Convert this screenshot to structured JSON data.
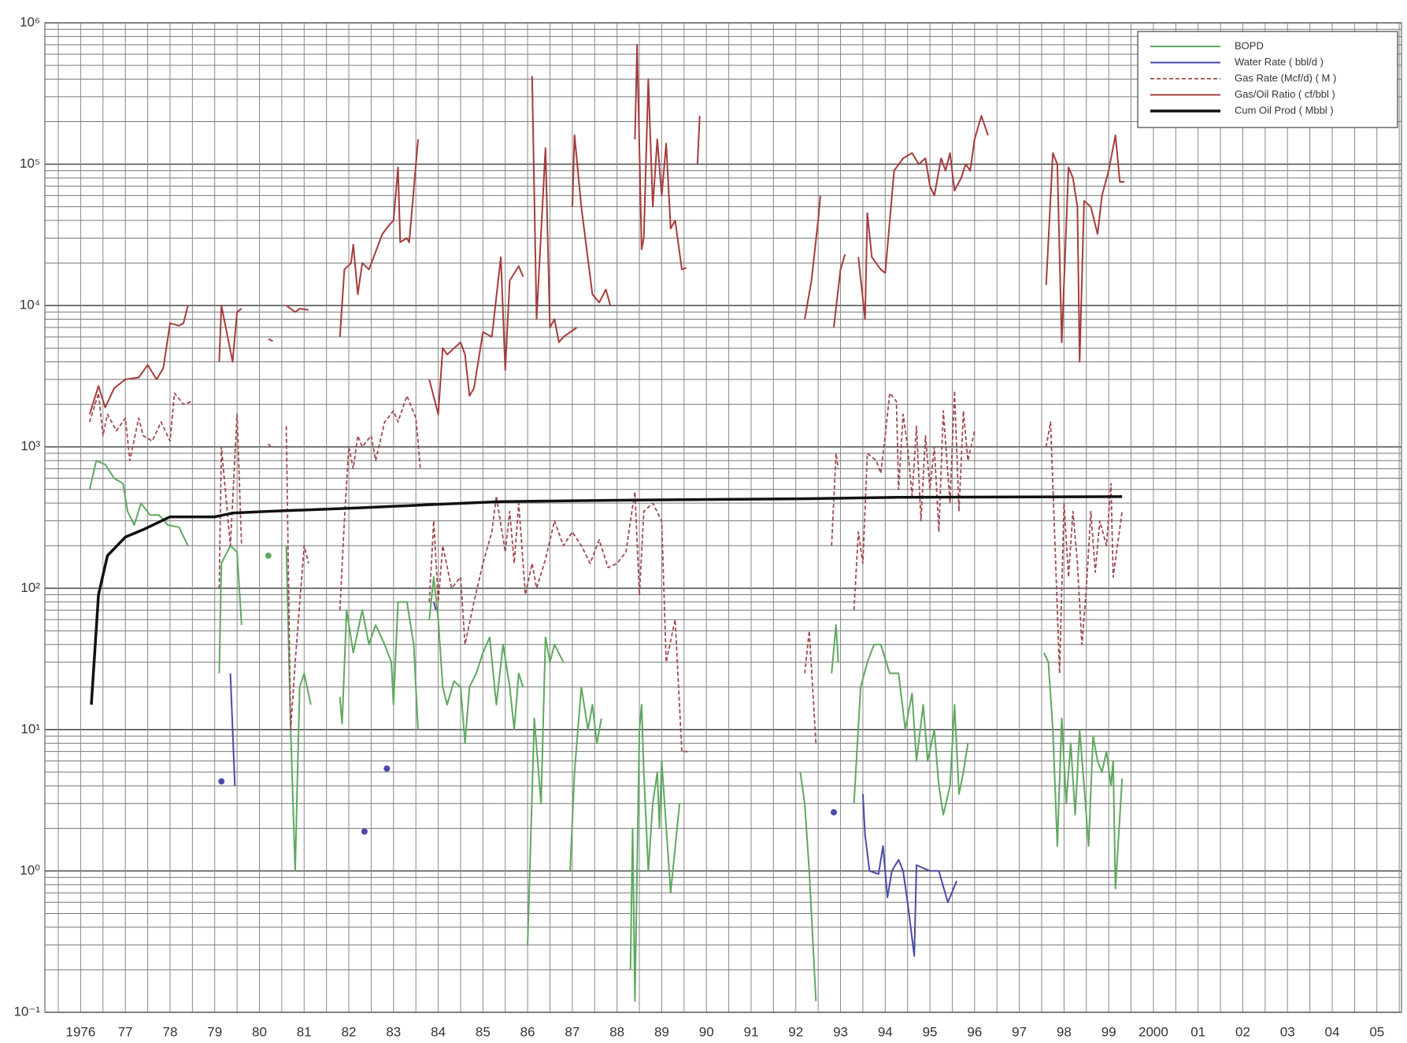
{
  "chart_data": {
    "type": "line",
    "log_y": true,
    "grid": true,
    "legend": "upper right",
    "xlim": [
      1975.2,
      2005.55
    ],
    "xticks": [
      {
        "value": 1976,
        "label": "1976"
      },
      {
        "value": 1977,
        "label": "77"
      },
      {
        "value": 1978,
        "label": "78"
      },
      {
        "value": 1979,
        "label": "79"
      },
      {
        "value": 1980,
        "label": "80"
      },
      {
        "value": 1981,
        "label": "81"
      },
      {
        "value": 1982,
        "label": "82"
      },
      {
        "value": 1983,
        "label": "83"
      },
      {
        "value": 1984,
        "label": "84"
      },
      {
        "value": 1985,
        "label": "85"
      },
      {
        "value": 1986,
        "label": "86"
      },
      {
        "value": 1987,
        "label": "87"
      },
      {
        "value": 1988,
        "label": "88"
      },
      {
        "value": 1989,
        "label": "89"
      },
      {
        "value": 1990,
        "label": "90"
      },
      {
        "value": 1991,
        "label": "91"
      },
      {
        "value": 1992,
        "label": "92"
      },
      {
        "value": 1993,
        "label": "93"
      },
      {
        "value": 1994,
        "label": "94"
      },
      {
        "value": 1995,
        "label": "95"
      },
      {
        "value": 1996,
        "label": "96"
      },
      {
        "value": 1997,
        "label": "97"
      },
      {
        "value": 1998,
        "label": "98"
      },
      {
        "value": 1999,
        "label": "99"
      },
      2000,
      {
        "value": 2001,
        "label": "01"
      },
      {
        "value": 2002,
        "label": "02"
      },
      {
        "value": 2003,
        "label": "03"
      },
      {
        "value": 2004,
        "label": "04"
      },
      {
        "value": 2005,
        "label": "05"
      }
    ],
    "ylim": [
      0.1,
      1000000
    ],
    "yticks": [
      {
        "value": 0.1,
        "label": "10⁻¹"
      },
      {
        "value": 1,
        "label": "10⁰"
      },
      {
        "value": 10,
        "label": "10¹"
      },
      {
        "value": 100,
        "label": "10²"
      },
      {
        "value": 1000,
        "label": "10³"
      },
      {
        "value": 10000,
        "label": "10⁴"
      },
      {
        "value": 100000,
        "label": "10⁵"
      },
      {
        "value": 1000000,
        "label": "10⁶"
      }
    ],
    "series": [
      {
        "name": "BOPD",
        "color": "#5fa85f",
        "style": "solid",
        "x": [
          1976.2,
          1976.35,
          1976.55,
          1976.75,
          1976.95,
          1977.05,
          1977.2,
          1977.35,
          1977.55,
          1977.75,
          1977.95,
          1978.2,
          1978.4,
          null,
          1979.1,
          1979.15,
          1979.35,
          1979.5,
          1979.6,
          null,
          1980.2,
          null,
          1980.6,
          1980.7,
          1980.8,
          1980.9,
          1981.0,
          1981.15,
          null,
          1981.8,
          1981.85,
          1981.95,
          1982.1,
          1982.3,
          1982.45,
          1982.6,
          1982.8,
          1982.95,
          1983.0,
          1983.1,
          1983.3,
          1983.45,
          1983.55,
          null,
          1983.8,
          1983.9,
          1984.0,
          1984.1,
          1984.2,
          1984.35,
          1984.5,
          1984.6,
          1984.7,
          1984.85,
          1985.0,
          1985.15,
          1985.3,
          1985.45,
          1985.6,
          1985.7,
          1985.8,
          1985.9,
          null,
          1986.0,
          1986.15,
          1986.3,
          1986.4,
          1986.5,
          1986.6,
          1986.8,
          null,
          1986.95,
          1987.05,
          1987.2,
          1987.35,
          1987.45,
          1987.55,
          1987.65,
          null,
          1988.3,
          1988.35,
          1988.4,
          1988.5,
          1988.55,
          1988.6,
          1988.7,
          1988.8,
          1988.9,
          1988.95,
          1989.0,
          1989.2,
          1989.4,
          null,
          1992.1,
          1992.2,
          1992.3,
          1992.45,
          null,
          1992.8,
          1992.9,
          1992.95,
          null,
          1993.3,
          1993.45,
          1993.6,
          1993.75,
          1993.9,
          1994.1,
          1994.3,
          1994.45,
          1994.6,
          1994.7,
          1994.85,
          1994.95,
          1995.1,
          1995.2,
          1995.3,
          1995.45,
          1995.55,
          1995.65,
          1995.75,
          1995.85,
          null,
          1997.55,
          1997.65,
          1997.75,
          1997.85,
          1997.95,
          1998.05,
          1998.15,
          1998.25,
          1998.35,
          1998.45,
          1998.55,
          1998.65,
          1998.75,
          1998.85,
          1998.95,
          1999.05,
          1999.1,
          1999.15,
          1999.3
        ],
        "values": [
          500,
          800,
          750,
          600,
          550,
          350,
          280,
          400,
          330,
          330,
          280,
          270,
          200,
          null,
          25,
          150,
          200,
          180,
          55,
          null,
          170,
          null,
          200,
          10,
          1,
          20,
          25,
          15,
          null,
          17,
          11,
          70,
          35,
          70,
          40,
          55,
          40,
          30,
          15,
          80,
          80,
          40,
          10,
          null,
          60,
          120,
          60,
          20,
          15,
          22,
          20,
          8,
          20,
          25,
          35,
          45,
          15,
          40,
          20,
          10,
          25,
          20,
          null,
          0.3,
          12,
          3,
          45,
          30,
          40,
          30,
          null,
          1,
          5,
          20,
          10,
          15,
          8,
          12,
          null,
          0.2,
          2,
          0.12,
          10,
          15,
          5,
          1,
          3,
          5,
          2,
          6,
          0.7,
          3,
          null,
          5,
          3,
          1,
          0.12,
          null,
          25,
          55,
          30,
          null,
          3,
          20,
          30,
          40,
          40,
          25,
          25,
          10,
          18,
          6,
          15,
          6,
          10,
          4,
          2.5,
          4,
          15,
          3.5,
          5,
          8,
          null,
          35,
          30,
          10,
          1.5,
          12,
          3,
          8,
          2.5,
          10,
          4,
          1.5,
          9,
          6,
          5,
          7,
          4,
          6,
          0.75,
          4.5
        ]
      },
      {
        "name": "Water Rate ( bbl/d )",
        "color": "#4a4aa8",
        "style": "solid",
        "x": [
          1979.15,
          null,
          1979.35,
          1979.45,
          null,
          1982.35,
          null,
          1982.85,
          null,
          1983.9,
          1983.95,
          null,
          1992.85,
          null,
          1993.5,
          1993.55,
          1993.65,
          1993.85,
          1993.95,
          1994.05,
          1994.15,
          1994.3,
          1994.4,
          1994.5,
          1994.65,
          1994.7,
          1995.0,
          1995.2,
          1995.4,
          1995.6
        ],
        "values": [
          4.3,
          null,
          25,
          4,
          null,
          1.9,
          null,
          5.3,
          null,
          80,
          70,
          null,
          2.6,
          null,
          3.5,
          1.8,
          1,
          0.95,
          1.5,
          0.65,
          1.0,
          1.2,
          1.0,
          0.6,
          0.25,
          1.1,
          1.0,
          1.0,
          0.6,
          0.85
        ]
      },
      {
        "name": "Gas Rate (Mcf/d) ( M )",
        "color": "#a04a4e",
        "style": "dashed",
        "x": [
          1976.2,
          1976.4,
          1976.5,
          1976.6,
          1976.8,
          1977.0,
          1977.1,
          1977.3,
          1977.4,
          1977.6,
          1977.8,
          1978.0,
          1978.1,
          1978.3,
          1978.5,
          null,
          1979.1,
          1979.15,
          1979.35,
          1979.5,
          1979.6,
          null,
          1980.2,
          1980.25,
          null,
          1980.6,
          1980.7,
          1980.8,
          1981.0,
          1981.1,
          null,
          1981.8,
          1981.9,
          1982.0,
          1982.1,
          1982.2,
          1982.3,
          1982.5,
          1982.6,
          1982.8,
          1983.0,
          1983.1,
          1983.3,
          1983.5,
          1983.6,
          null,
          1983.8,
          1983.9,
          1984.0,
          1984.1,
          1984.3,
          1984.5,
          1984.6,
          1984.8,
          1985.0,
          1985.2,
          1985.3,
          1985.5,
          1985.6,
          1985.7,
          1985.8,
          1985.95,
          1986.1,
          1986.2,
          1986.4,
          1986.6,
          1986.8,
          1987.0,
          1987.2,
          1987.4,
          1987.6,
          1987.8,
          1988.0,
          1988.2,
          1988.3,
          1988.4,
          1988.5,
          1988.6,
          1988.8,
          1989.0,
          1989.1,
          1989.3,
          1989.45,
          1989.6,
          null,
          1992.2,
          1992.3,
          1992.45,
          null,
          1992.8,
          1992.9,
          1992.95,
          null,
          1993.3,
          1993.4,
          1993.5,
          1993.6,
          1993.8,
          1993.9,
          1994.0,
          1994.1,
          1994.25,
          1994.3,
          1994.4,
          1994.5,
          1994.6,
          1994.7,
          1994.8,
          1994.9,
          1995.0,
          1995.1,
          1995.2,
          1995.3,
          1995.45,
          1995.55,
          1995.65,
          1995.75,
          1995.85,
          1996.0,
          null,
          1997.6,
          1997.7,
          1997.8,
          1997.9,
          1998.0,
          1998.1,
          1998.2,
          1998.3,
          1998.4,
          1998.5,
          1998.6,
          1998.7,
          1998.8,
          1998.95,
          1999.05,
          1999.1,
          1999.3
        ],
        "values": [
          1500,
          2400,
          1200,
          1700,
          1300,
          1600,
          800,
          1600,
          1200,
          1100,
          1500,
          1100,
          2400,
          2000,
          2100,
          null,
          100,
          1000,
          200,
          1700,
          200,
          null,
          1050,
          1000,
          null,
          1400,
          10,
          30,
          200,
          150,
          null,
          70,
          300,
          1000,
          700,
          1200,
          1000,
          1200,
          800,
          1500,
          1800,
          1500,
          2300,
          1600,
          700,
          null,
          80,
          300,
          80,
          200,
          100,
          120,
          40,
          80,
          150,
          250,
          450,
          180,
          350,
          150,
          400,
          90,
          150,
          100,
          160,
          300,
          200,
          250,
          200,
          150,
          220,
          140,
          150,
          180,
          300,
          480,
          90,
          350,
          400,
          300,
          30,
          60,
          7,
          7,
          null,
          25,
          50,
          8,
          null,
          200,
          900,
          700,
          null,
          70,
          250,
          150,
          900,
          800,
          650,
          1200,
          2400,
          2100,
          500,
          1700,
          1000,
          450,
          1400,
          300,
          1200,
          500,
          1000,
          250,
          1800,
          400,
          2500,
          350,
          1800,
          800,
          1300,
          null,
          1000,
          1500,
          200,
          25,
          400,
          120,
          350,
          150,
          40,
          100,
          350,
          130,
          300,
          200,
          550,
          120,
          350
        ]
      },
      {
        "name": "Gas/Oil Ratio ( cf/bbl )",
        "color": "#a63c3c",
        "style": "solid",
        "x": [
          1976.2,
          1976.4,
          1976.55,
          1976.75,
          1977.0,
          1977.3,
          1977.5,
          1977.7,
          1977.85,
          1978.0,
          1978.2,
          1978.3,
          1978.4,
          null,
          1979.1,
          1979.15,
          1979.4,
          1979.5,
          1979.6,
          null,
          1980.2,
          1980.3,
          null,
          1980.6,
          1980.8,
          1980.9,
          1981.1,
          null,
          1981.8,
          1981.9,
          1982.05,
          1982.1,
          1982.2,
          1982.3,
          1982.45,
          1982.6,
          1982.75,
          1982.9,
          1983.0,
          1983.1,
          1983.15,
          1983.3,
          1983.35,
          1983.55,
          null,
          1983.8,
          1984.0,
          1984.1,
          1984.2,
          1984.5,
          1984.6,
          1984.7,
          1984.8,
          1985.0,
          1985.2,
          1985.4,
          1985.5,
          1985.6,
          1985.8,
          1985.9,
          null,
          1986.1,
          1986.2,
          1986.4,
          1986.5,
          1986.6,
          1986.7,
          1986.8,
          1987.1,
          null,
          1987.0,
          1987.05,
          1987.2,
          1987.45,
          1987.6,
          1987.75,
          1987.85,
          null,
          1988.4,
          1988.45,
          1988.55,
          1988.6,
          1988.7,
          1988.8,
          1988.9,
          1989.0,
          1989.1,
          1989.2,
          1989.3,
          1989.45,
          1989.55,
          null,
          1989.8,
          1989.85,
          null,
          1992.2,
          1992.35,
          1992.5,
          1992.55,
          null,
          1992.85,
          1993.0,
          1993.1,
          null,
          1993.4,
          1993.55,
          1993.6,
          1993.7,
          1993.9,
          1994.0,
          1994.2,
          1994.4,
          1994.6,
          1994.75,
          1994.9,
          1995.0,
          1995.1,
          1995.25,
          1995.35,
          1995.45,
          1995.55,
          1995.7,
          1995.8,
          1995.9,
          1996.0,
          1996.15,
          1996.3,
          null,
          1997.6,
          1997.75,
          1997.85,
          1997.95,
          1998.1,
          1998.2,
          1998.3,
          1998.35,
          1998.45,
          1998.6,
          1998.75,
          1998.85,
          1999.0,
          1999.15,
          1999.25,
          1999.35
        ],
        "values": [
          1700,
          2700,
          1900,
          2600,
          3000,
          3100,
          3800,
          3000,
          3600,
          7500,
          7200,
          7500,
          10000,
          null,
          4000,
          10000,
          4000,
          9000,
          9500,
          null,
          5800,
          5600,
          null,
          10000,
          9000,
          9500,
          9300,
          null,
          6000,
          18000,
          20000,
          27000,
          12000,
          20000,
          18000,
          24000,
          32000,
          37000,
          40000,
          95000,
          28000,
          30000,
          28000,
          150000,
          null,
          3000,
          1700,
          5000,
          4500,
          5500,
          4500,
          2300,
          2600,
          6500,
          6000,
          22000,
          3500,
          15000,
          19000,
          16000,
          null,
          420000,
          8000,
          130000,
          7000,
          8000,
          5500,
          6000,
          7000,
          null,
          50000,
          160000,
          50000,
          12000,
          10500,
          13000,
          10000,
          null,
          150000,
          700000,
          25000,
          30000,
          400000,
          50000,
          150000,
          60000,
          140000,
          35000,
          40000,
          18000,
          18500,
          null,
          100000,
          220000,
          null,
          8000,
          15000,
          40000,
          60000,
          null,
          7000,
          18000,
          23000,
          null,
          22000,
          8000,
          45000,
          22000,
          18000,
          17000,
          90000,
          110000,
          120000,
          100000,
          110000,
          70000,
          60000,
          110000,
          90000,
          120000,
          65000,
          80000,
          100000,
          90000,
          150000,
          220000,
          160000,
          null,
          14000,
          120000,
          100000,
          5500,
          95000,
          80000,
          50000,
          4000,
          55000,
          50000,
          32000,
          60000,
          90000,
          160000,
          75000,
          75000
        ]
      },
      {
        "name": "Cum Oil Prod ( Mbbl )",
        "color": "#111111",
        "style": "thick",
        "x": [
          1976.24,
          1976.4,
          1976.6,
          1977.0,
          1977.4,
          1978.0,
          1979.0,
          1979.4,
          1980.2,
          1982.2,
          1983.8,
          1985.4,
          1988.2,
          1992.3,
          1994.3,
          1999.3
        ],
        "values": [
          15,
          90,
          170,
          230,
          260,
          320,
          320,
          340,
          350,
          370,
          390,
          410,
          420,
          430,
          440,
          445
        ]
      }
    ]
  }
}
